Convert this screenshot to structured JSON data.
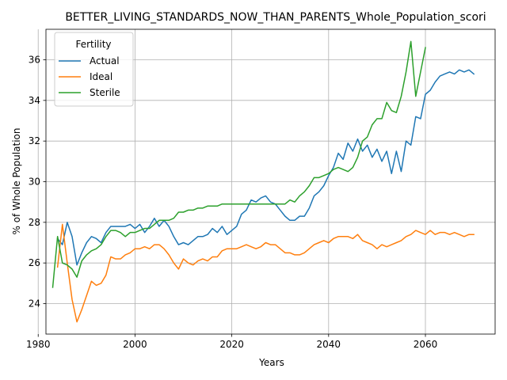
{
  "chart_data": {
    "type": "line",
    "title": "BETTER_LIVING_STANDARDS_NOW_THAN_PARENTS_Whole_Population_scori",
    "xlabel": "Years",
    "ylabel": "% of Whole Population",
    "xlim": [
      1981.6,
      2074.4
    ],
    "ylim": [
      22.5,
      37.5
    ],
    "xticks": [
      1980,
      2000,
      2020,
      2040,
      2060
    ],
    "yticks": [
      24,
      26,
      28,
      30,
      32,
      34,
      36
    ],
    "xtick_labels": [
      "1980",
      "2000",
      "2020",
      "2040",
      "2060"
    ],
    "ytick_labels": [
      "24",
      "26",
      "28",
      "30",
      "32",
      "34",
      "36"
    ],
    "grid": true,
    "legend": {
      "title": "Fertility",
      "placement": "upper-left"
    },
    "series": [
      {
        "name": "Actual",
        "color": "#1f77b4",
        "x": [
          1984,
          1985,
          1986,
          1987,
          1988,
          1989,
          1990,
          1991,
          1992,
          1993,
          1994,
          1995,
          1996,
          1997,
          1998,
          1999,
          2000,
          2001,
          2002,
          2003,
          2004,
          2005,
          2006,
          2007,
          2008,
          2009,
          2010,
          2011,
          2012,
          2013,
          2014,
          2015,
          2016,
          2017,
          2018,
          2019,
          2020,
          2021,
          2022,
          2023,
          2024,
          2025,
          2026,
          2027,
          2028,
          2029,
          2030,
          2031,
          2032,
          2033,
          2034,
          2035,
          2036,
          2037,
          2038,
          2039,
          2040,
          2041,
          2042,
          2043,
          2044,
          2045,
          2046,
          2047,
          2048,
          2049,
          2050,
          2051,
          2052,
          2053,
          2054,
          2055,
          2056,
          2057,
          2058,
          2059,
          2060,
          2061,
          2062,
          2063,
          2064,
          2065,
          2066,
          2067,
          2068,
          2069,
          2070
        ],
        "values": [
          27.2,
          26.9,
          28.0,
          27.3,
          25.9,
          26.5,
          27.0,
          27.3,
          27.2,
          27.0,
          27.5,
          27.8,
          27.8,
          27.8,
          27.8,
          27.9,
          27.7,
          27.9,
          27.5,
          27.8,
          28.2,
          27.8,
          28.1,
          27.8,
          27.3,
          26.9,
          27.0,
          26.9,
          27.1,
          27.3,
          27.3,
          27.4,
          27.7,
          27.5,
          27.8,
          27.4,
          27.6,
          27.8,
          28.4,
          28.6,
          29.1,
          29.0,
          29.2,
          29.3,
          29.0,
          28.9,
          28.6,
          28.3,
          28.1,
          28.1,
          28.3,
          28.3,
          28.7,
          29.3,
          29.5,
          29.8,
          30.3,
          30.7,
          31.4,
          31.1,
          31.9,
          31.5,
          32.1,
          31.5,
          31.8,
          31.2,
          31.6,
          31.0,
          31.5,
          30.4,
          31.5,
          30.5,
          32.0,
          31.8,
          33.2,
          33.1,
          34.3,
          34.5,
          34.9,
          35.2,
          35.3,
          35.4,
          35.3,
          35.5,
          35.4,
          35.5,
          35.3
        ]
      },
      {
        "name": "Ideal",
        "color": "#ff7f0e",
        "x": [
          1984,
          1985,
          1986,
          1987,
          1988,
          1989,
          1990,
          1991,
          1992,
          1993,
          1994,
          1995,
          1996,
          1997,
          1998,
          1999,
          2000,
          2001,
          2002,
          2003,
          2004,
          2005,
          2006,
          2007,
          2008,
          2009,
          2010,
          2011,
          2012,
          2013,
          2014,
          2015,
          2016,
          2017,
          2018,
          2019,
          2020,
          2021,
          2022,
          2023,
          2024,
          2025,
          2026,
          2027,
          2028,
          2029,
          2030,
          2031,
          2032,
          2033,
          2034,
          2035,
          2036,
          2037,
          2038,
          2039,
          2040,
          2041,
          2042,
          2043,
          2044,
          2045,
          2046,
          2047,
          2048,
          2049,
          2050,
          2051,
          2052,
          2053,
          2054,
          2055,
          2056,
          2057,
          2058,
          2059,
          2060,
          2061,
          2062,
          2063,
          2064,
          2065,
          2066,
          2067,
          2068,
          2069,
          2070
        ],
        "values": [
          25.8,
          27.9,
          26.0,
          24.2,
          23.1,
          23.7,
          24.4,
          25.1,
          24.9,
          25.0,
          25.4,
          26.3,
          26.2,
          26.2,
          26.4,
          26.5,
          26.7,
          26.7,
          26.8,
          26.7,
          26.9,
          26.9,
          26.7,
          26.4,
          26.0,
          25.7,
          26.2,
          26.0,
          25.9,
          26.1,
          26.2,
          26.1,
          26.3,
          26.3,
          26.6,
          26.7,
          26.7,
          26.7,
          26.8,
          26.9,
          26.8,
          26.7,
          26.8,
          27.0,
          26.9,
          26.9,
          26.7,
          26.5,
          26.5,
          26.4,
          26.4,
          26.5,
          26.7,
          26.9,
          27.0,
          27.1,
          27.0,
          27.2,
          27.3,
          27.3,
          27.3,
          27.2,
          27.4,
          27.1,
          27.0,
          26.9,
          26.7,
          26.9,
          26.8,
          26.9,
          27.0,
          27.1,
          27.3,
          27.4,
          27.6,
          27.5,
          27.4,
          27.6,
          27.4,
          27.5,
          27.5,
          27.4,
          27.5,
          27.4,
          27.3,
          27.4,
          27.4
        ]
      },
      {
        "name": "Sterile",
        "color": "#2ca02c",
        "x": [
          1983,
          1984,
          1985,
          1986,
          1987,
          1988,
          1989,
          1990,
          1991,
          1992,
          1993,
          1994,
          1995,
          1996,
          1997,
          1998,
          1999,
          2000,
          2001,
          2002,
          2003,
          2004,
          2005,
          2006,
          2007,
          2008,
          2009,
          2010,
          2011,
          2012,
          2013,
          2014,
          2015,
          2016,
          2017,
          2018,
          2019,
          2020,
          2021,
          2022,
          2023,
          2024,
          2025,
          2026,
          2027,
          2028,
          2029,
          2030,
          2031,
          2032,
          2033,
          2034,
          2035,
          2036,
          2037,
          2038,
          2039,
          2040,
          2041,
          2042,
          2043,
          2044,
          2045,
          2046,
          2047,
          2048,
          2049,
          2050,
          2051,
          2052,
          2053,
          2054,
          2055,
          2056,
          2057,
          2058,
          2059,
          2060
        ],
        "values": [
          24.8,
          27.3,
          26.0,
          25.9,
          25.7,
          25.3,
          26.1,
          26.4,
          26.6,
          26.7,
          26.9,
          27.3,
          27.6,
          27.6,
          27.5,
          27.3,
          27.5,
          27.5,
          27.6,
          27.7,
          27.7,
          27.9,
          28.1,
          28.1,
          28.1,
          28.2,
          28.5,
          28.5,
          28.6,
          28.6,
          28.7,
          28.7,
          28.8,
          28.8,
          28.8,
          28.9,
          28.9,
          28.9,
          28.9,
          28.9,
          28.9,
          28.9,
          28.9,
          28.9,
          28.9,
          28.9,
          28.9,
          28.9,
          28.9,
          29.1,
          29.0,
          29.3,
          29.5,
          29.8,
          30.2,
          30.2,
          30.3,
          30.4,
          30.6,
          30.7,
          30.6,
          30.5,
          30.7,
          31.2,
          32.0,
          32.2,
          32.8,
          33.1,
          33.1,
          33.9,
          33.5,
          33.4,
          34.2,
          35.4,
          36.9,
          34.2,
          35.4,
          36.6
        ]
      }
    ]
  }
}
